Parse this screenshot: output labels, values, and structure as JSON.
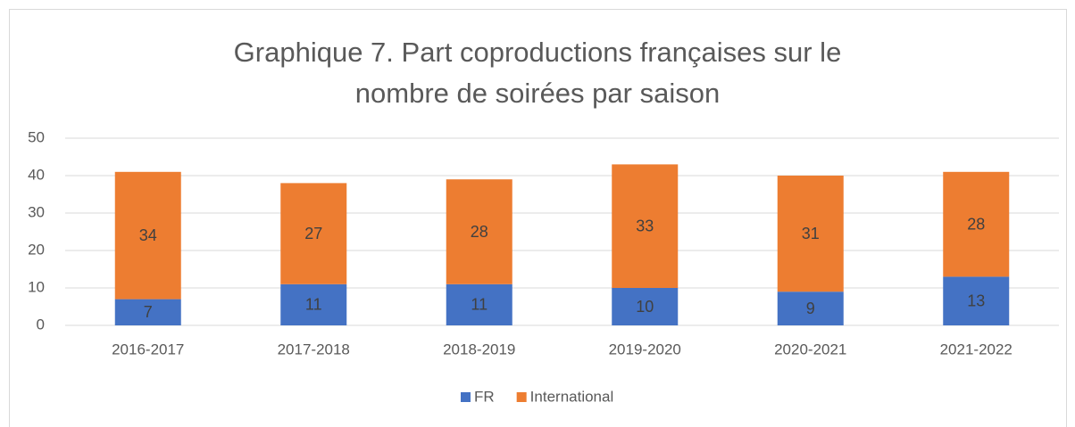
{
  "chart_data": {
    "type": "bar",
    "stacked": true,
    "title": "Graphique 7. Part coproductions françaises sur le nombre de soirées par saison",
    "categories": [
      "2016-2017",
      "2017-2018",
      "2018-2019",
      "2019-2020",
      "2020-2021",
      "2021-2022"
    ],
    "series": [
      {
        "name": "FR",
        "color": "#4472c4",
        "values": [
          7,
          11,
          11,
          10,
          9,
          13
        ]
      },
      {
        "name": "International",
        "color": "#ed7d31",
        "values": [
          34,
          27,
          28,
          33,
          31,
          28
        ]
      }
    ],
    "ylim": [
      0,
      50
    ],
    "yticks": [
      0,
      10,
      20,
      30,
      40,
      50
    ],
    "grid": true,
    "legend": "bottom"
  }
}
